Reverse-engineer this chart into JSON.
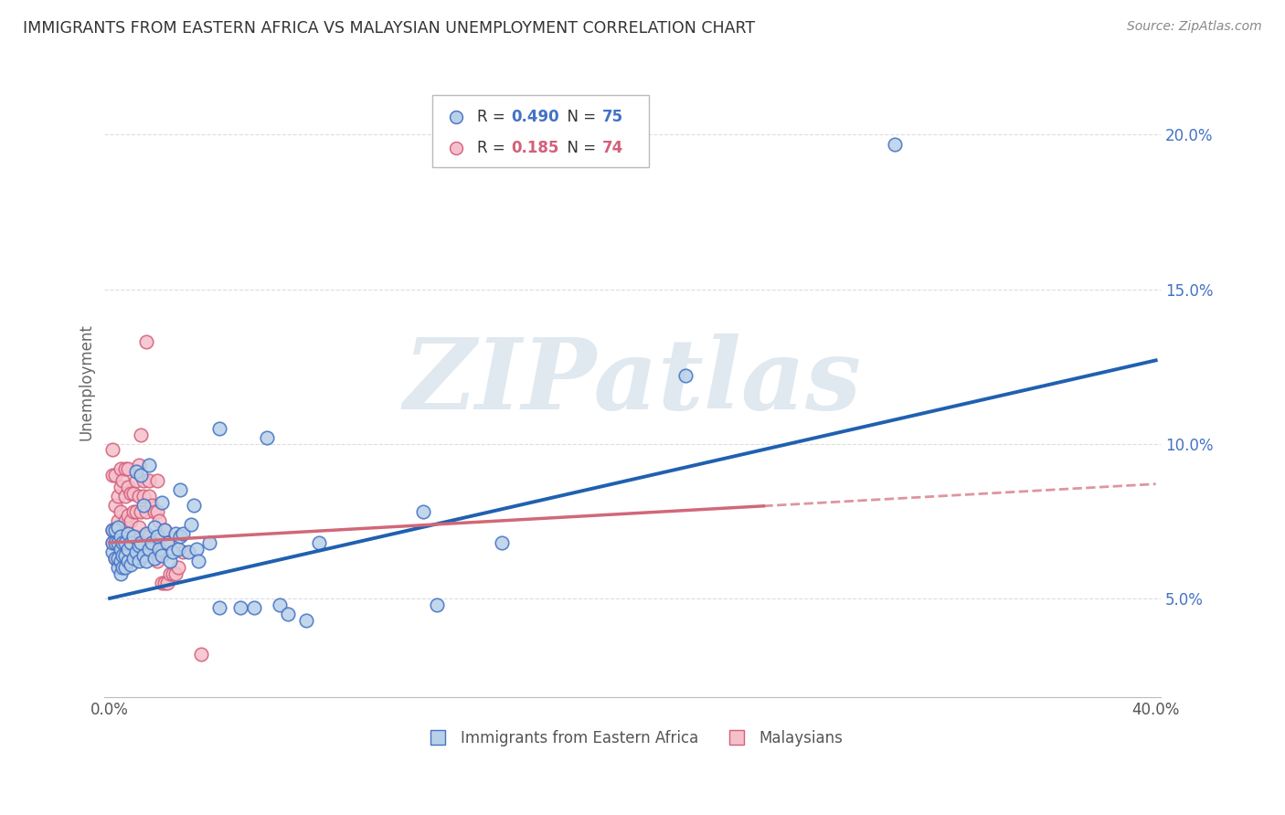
{
  "title": "IMMIGRANTS FROM EASTERN AFRICA VS MALAYSIAN UNEMPLOYMENT CORRELATION CHART",
  "source": "Source: ZipAtlas.com",
  "ylabel": "Unemployment",
  "xlim": [
    -0.002,
    0.402
  ],
  "ylim": [
    0.018,
    0.222
  ],
  "blue_R": 0.49,
  "blue_N": 75,
  "pink_R": 0.185,
  "pink_N": 74,
  "blue_fill": "#b8d0e8",
  "blue_edge": "#4472c4",
  "pink_fill": "#f5c0cc",
  "pink_edge": "#d4607a",
  "blue_line": "#2060b0",
  "pink_line": "#d06878",
  "watermark_color": "#e0e8f0",
  "blue_scatter_x": [
    0.001,
    0.001,
    0.001,
    0.002,
    0.002,
    0.002,
    0.003,
    0.003,
    0.003,
    0.003,
    0.004,
    0.004,
    0.004,
    0.004,
    0.005,
    0.005,
    0.005,
    0.006,
    0.006,
    0.006,
    0.007,
    0.007,
    0.007,
    0.008,
    0.008,
    0.009,
    0.009,
    0.01,
    0.01,
    0.011,
    0.011,
    0.012,
    0.012,
    0.013,
    0.013,
    0.014,
    0.014,
    0.015,
    0.015,
    0.016,
    0.017,
    0.017,
    0.018,
    0.019,
    0.02,
    0.02,
    0.021,
    0.022,
    0.023,
    0.024,
    0.025,
    0.026,
    0.027,
    0.027,
    0.028,
    0.03,
    0.031,
    0.032,
    0.033,
    0.034,
    0.038,
    0.042,
    0.042,
    0.05,
    0.055,
    0.06,
    0.065,
    0.068,
    0.075,
    0.08,
    0.12,
    0.125,
    0.15,
    0.22,
    0.3
  ],
  "blue_scatter_y": [
    0.065,
    0.068,
    0.072,
    0.063,
    0.068,
    0.072,
    0.06,
    0.063,
    0.068,
    0.073,
    0.058,
    0.062,
    0.066,
    0.07,
    0.06,
    0.064,
    0.068,
    0.06,
    0.064,
    0.068,
    0.062,
    0.066,
    0.071,
    0.061,
    0.068,
    0.063,
    0.07,
    0.065,
    0.091,
    0.062,
    0.067,
    0.068,
    0.09,
    0.064,
    0.08,
    0.062,
    0.071,
    0.066,
    0.093,
    0.068,
    0.063,
    0.073,
    0.07,
    0.066,
    0.064,
    0.081,
    0.072,
    0.068,
    0.062,
    0.065,
    0.071,
    0.066,
    0.085,
    0.07,
    0.071,
    0.065,
    0.074,
    0.08,
    0.066,
    0.062,
    0.068,
    0.047,
    0.105,
    0.047,
    0.047,
    0.102,
    0.048,
    0.045,
    0.043,
    0.068,
    0.078,
    0.048,
    0.068,
    0.122,
    0.197
  ],
  "pink_scatter_x": [
    0.001,
    0.001,
    0.001,
    0.001,
    0.002,
    0.002,
    0.002,
    0.002,
    0.003,
    0.003,
    0.003,
    0.003,
    0.004,
    0.004,
    0.004,
    0.004,
    0.004,
    0.005,
    0.005,
    0.005,
    0.006,
    0.006,
    0.006,
    0.006,
    0.007,
    0.007,
    0.007,
    0.007,
    0.008,
    0.008,
    0.008,
    0.009,
    0.009,
    0.009,
    0.01,
    0.01,
    0.01,
    0.011,
    0.011,
    0.011,
    0.011,
    0.012,
    0.012,
    0.012,
    0.013,
    0.013,
    0.013,
    0.014,
    0.014,
    0.014,
    0.015,
    0.015,
    0.015,
    0.016,
    0.016,
    0.017,
    0.017,
    0.018,
    0.018,
    0.018,
    0.019,
    0.019,
    0.02,
    0.02,
    0.021,
    0.021,
    0.022,
    0.022,
    0.023,
    0.024,
    0.025,
    0.026,
    0.028,
    0.035
  ],
  "pink_scatter_y": [
    0.068,
    0.072,
    0.09,
    0.098,
    0.063,
    0.07,
    0.08,
    0.09,
    0.062,
    0.068,
    0.075,
    0.083,
    0.063,
    0.07,
    0.078,
    0.086,
    0.092,
    0.065,
    0.073,
    0.088,
    0.068,
    0.075,
    0.083,
    0.092,
    0.068,
    0.077,
    0.086,
    0.092,
    0.066,
    0.075,
    0.084,
    0.068,
    0.078,
    0.084,
    0.07,
    0.078,
    0.088,
    0.063,
    0.073,
    0.083,
    0.093,
    0.067,
    0.078,
    0.103,
    0.07,
    0.083,
    0.088,
    0.066,
    0.078,
    0.133,
    0.07,
    0.083,
    0.088,
    0.066,
    0.08,
    0.068,
    0.078,
    0.062,
    0.078,
    0.088,
    0.065,
    0.075,
    0.055,
    0.07,
    0.055,
    0.072,
    0.055,
    0.068,
    0.058,
    0.058,
    0.058,
    0.06,
    0.065,
    0.032
  ],
  "blue_trend_x": [
    0.0,
    0.4
  ],
  "blue_trend_y": [
    0.05,
    0.127
  ],
  "pink_trend_x": [
    0.0,
    0.4
  ],
  "pink_trend_y": [
    0.068,
    0.087
  ]
}
